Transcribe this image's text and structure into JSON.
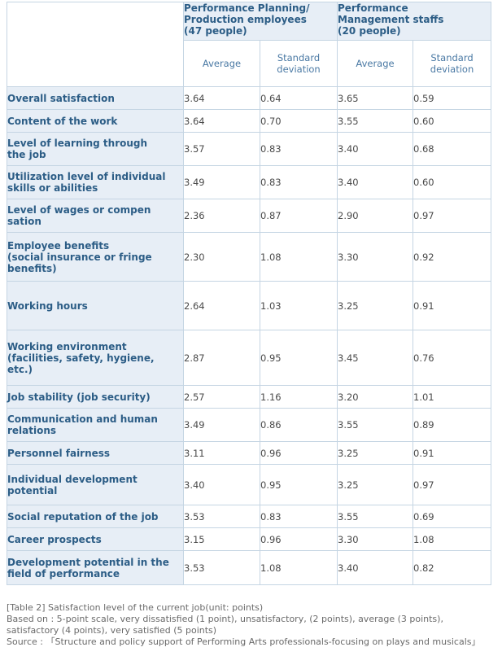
{
  "groups": [
    {
      "label": "Performance Planning/\nProduction employees\n(47 people)"
    },
    {
      "label": "Performance\nManagement staffs\n(20 people)"
    }
  ],
  "subheaders": [
    "Average",
    "Standard\ndeviation",
    "Average",
    "Standard\ndeviation"
  ],
  "rows": [
    {
      "label": "Overall satisfaction",
      "v": [
        "3.64",
        "0.64",
        "3.65",
        "0.59"
      ]
    },
    {
      "label": "Content of the work",
      "v": [
        "3.64",
        "0.70",
        "3.55",
        "0.60"
      ]
    },
    {
      "label": "Level of learning through\nthe job",
      "v": [
        "3.57",
        "0.83",
        "3.40",
        "0.68"
      ]
    },
    {
      "label": "Utilization level of individual\nskills or abilities",
      "v": [
        "3.49",
        "0.83",
        "3.40",
        "0.60"
      ]
    },
    {
      "label": "Level of wages or compen\nsation",
      "v": [
        "2.36",
        "0.87",
        "2.90",
        "0.97"
      ]
    },
    {
      "label": "Employee benefits\n(social insurance or fringe\nbenefits)",
      "v": [
        "2.30",
        "1.08",
        "3.30",
        "0.92"
      ]
    },
    {
      "label": "Working hours",
      "v": [
        "2.64",
        "1.03",
        "3.25",
        "0.91"
      ]
    },
    {
      "label": "Working environment\n(facilities, safety, hygiene,\netc.)",
      "v": [
        "2.87",
        "0.95",
        "3.45",
        "0.76"
      ]
    },
    {
      "label": "Job stability (job security)",
      "v": [
        "2.57",
        "1.16",
        "3.20",
        "1.01"
      ]
    },
    {
      "label": "Communication and human\nrelations",
      "v": [
        "3.49",
        "0.86",
        "3.55",
        "0.89"
      ]
    },
    {
      "label": "Personnel fairness",
      "v": [
        "3.11",
        "0.96",
        "3.25",
        "0.91"
      ]
    },
    {
      "label": "Individual development\npotential",
      "v": [
        "3.40",
        "0.95",
        "3.25",
        "0.97"
      ]
    },
    {
      "label": "Social reputation of the job",
      "v": [
        "3.53",
        "0.83",
        "3.55",
        "0.69"
      ]
    },
    {
      "label": "Career prospects",
      "v": [
        "3.15",
        "0.96",
        "3.30",
        "1.08"
      ]
    },
    {
      "label": "Development potential in the\nfield of performance",
      "v": [
        "3.53",
        "1.08",
        "3.40",
        "0.82"
      ]
    }
  ],
  "footer": {
    "caption": "[Table 2] Satisfaction level of the current job(unit: points)",
    "basis_line1": "Based on : 5-point scale, very dissatisfied (1 point), unsatisfactory, (2 points), average (3 points),",
    "basis_line2": "satisfactory (4 points), very satisfied (5 points)",
    "source": "Source : 「Structure and policy support of Performing Arts professionals-focusing on plays and musicals」"
  },
  "colors": {
    "label_bg": "#e7eef6",
    "border": "#c5d5e3",
    "header_text": "#2c5d86",
    "subheader_text": "#4a79a4"
  }
}
